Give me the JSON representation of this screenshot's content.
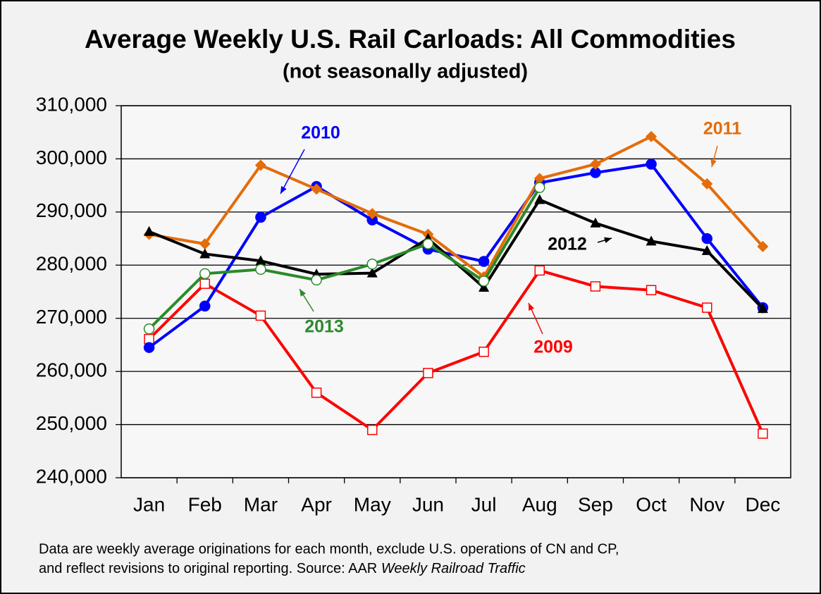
{
  "chart_data": {
    "type": "line",
    "title": "Average Weekly U.S. Rail Carloads: All Commodities",
    "subtitle": "(not seasonally adjusted)",
    "categories": [
      "Jan",
      "Feb",
      "Mar",
      "Apr",
      "May",
      "Jun",
      "Jul",
      "Aug",
      "Sep",
      "Oct",
      "Nov",
      "Dec"
    ],
    "series": [
      {
        "name": "2009",
        "color": "#ff0000",
        "marker": "square-open",
        "values": [
          266100,
          276500,
          270500,
          256000,
          249000,
          259700,
          263700,
          279000,
          276000,
          275300,
          272000,
          248300
        ]
      },
      {
        "name": "2010",
        "color": "#0000ff",
        "marker": "circle",
        "values": [
          264500,
          272300,
          289000,
          294800,
          288500,
          283000,
          280700,
          295500,
          297400,
          299000,
          285000,
          272000
        ]
      },
      {
        "name": "2011",
        "color": "#e46c0a",
        "marker": "diamond",
        "values": [
          285800,
          284000,
          298800,
          294300,
          289700,
          285800,
          277800,
          296300,
          299000,
          304200,
          295300,
          283500
        ]
      },
      {
        "name": "2012",
        "color": "#000000",
        "marker": "triangle",
        "values": [
          286300,
          282100,
          280800,
          278300,
          278500,
          285000,
          275800,
          292300,
          287900,
          284500,
          282700,
          271800
        ]
      },
      {
        "name": "2013",
        "color": "#2a8a2a",
        "marker": "circle-open",
        "values": [
          268000,
          278400,
          279200,
          277200,
          280200,
          284000,
          277000,
          294600,
          null,
          null,
          null,
          null
        ]
      }
    ],
    "ylim": [
      240000,
      310000
    ],
    "yticks": [
      {
        "value": 240000,
        "label": "240,000"
      },
      {
        "value": 250000,
        "label": "250,000"
      },
      {
        "value": 260000,
        "label": "260,000"
      },
      {
        "value": 270000,
        "label": "270,000"
      },
      {
        "value": 280000,
        "label": "280,000"
      },
      {
        "value": 290000,
        "label": "290,000"
      },
      {
        "value": 300000,
        "label": "300,000"
      },
      {
        "value": 310000,
        "label": "310,000"
      }
    ],
    "grid": true,
    "footnote": {
      "line1": "Data are weekly average originations for each month, exclude U.S. operations of CN and CP,",
      "line2": "and reflect revisions to original reporting.  Source: AAR",
      "line2_italic": "Weekly Railroad Traffic"
    }
  }
}
